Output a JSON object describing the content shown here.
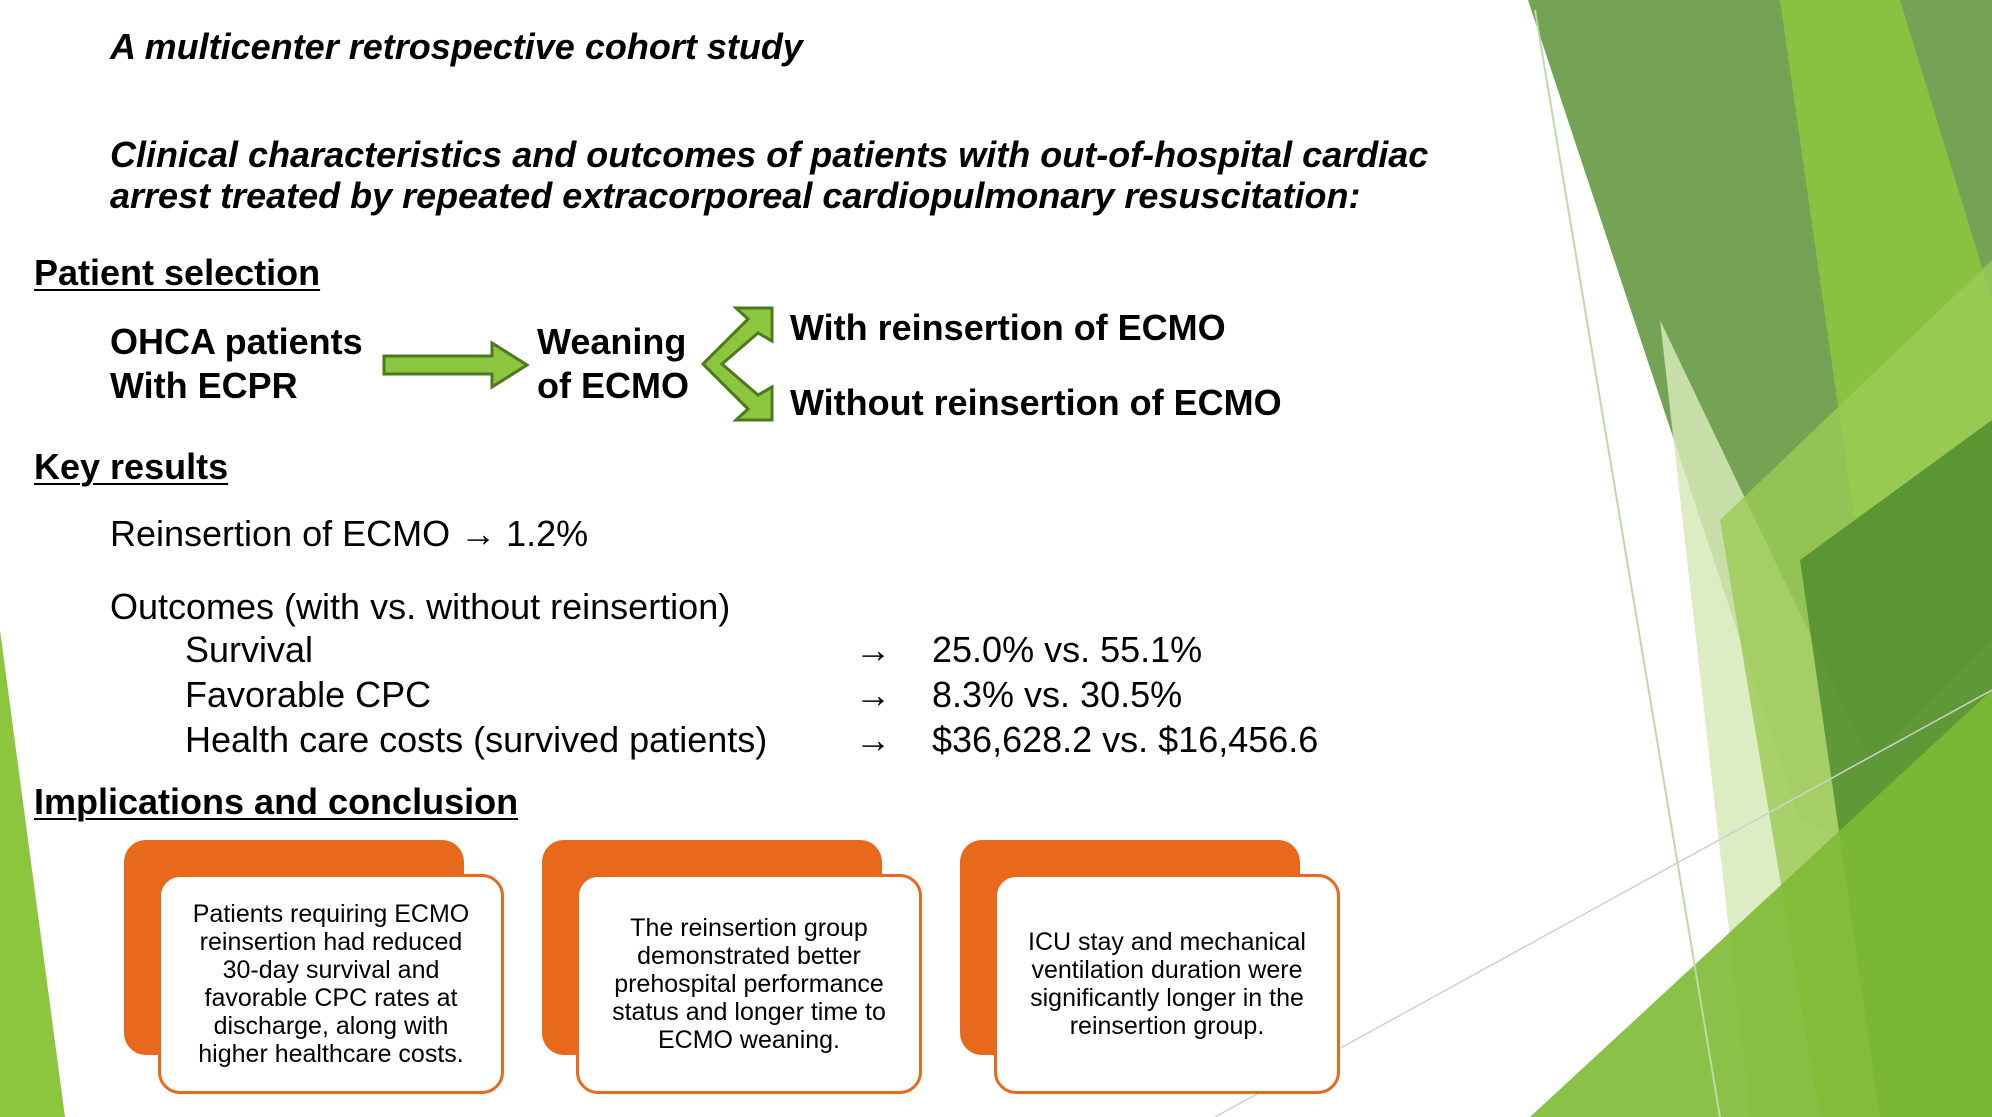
{
  "subtitle": "A multicenter retrospective cohort study",
  "title_lines": [
    "Clinical characteristics and outcomes of patients with out-of-hospital cardiac",
    "arrest treated by repeated extracorporeal cardiopulmonary resuscitation:"
  ],
  "patient_selection": {
    "heading": "Patient selection",
    "start_lines": [
      "OHCA patients",
      "With ECPR"
    ],
    "middle_lines": [
      "Weaning",
      "of ECMO"
    ],
    "branch_top": "With reinsertion of ECMO",
    "branch_bottom": "Without reinsertion of ECMO"
  },
  "key_results": {
    "heading": "Key results",
    "reinsertion": "Reinsertion of ECMO → 1.2%",
    "outcomes_heading": "Outcomes (with vs. without reinsertion)",
    "arrow": "→",
    "rows": [
      {
        "label": "Survival",
        "value": "25.0% vs. 55.1%"
      },
      {
        "label": "Favorable CPC",
        "value": "8.3% vs. 30.5%"
      },
      {
        "label": "Health care costs (survived patients)",
        "value": "$36,628.2 vs. $16,456.6"
      }
    ]
  },
  "implications": {
    "heading": "Implications and conclusion",
    "cards": [
      "Patients requiring ECMO reinsertion had reduced 30-day survival and favorable CPC rates at discharge, along with higher healthcare costs.",
      "The reinsertion group demonstrated better prehospital performance status and longer time to ECMO weaning.",
      "ICU stay and mechanical ventilation duration were significantly longer in the reinsertion group."
    ]
  },
  "colors": {
    "accent_orange": "#E8691C",
    "arrow_green": "#8CC63F",
    "arrow_outline": "#4E7A1E",
    "deco_dark_green": "#5E9A3A",
    "deco_light_green": "#8DC63F",
    "deco_pale_green": "#D6E9B8"
  }
}
